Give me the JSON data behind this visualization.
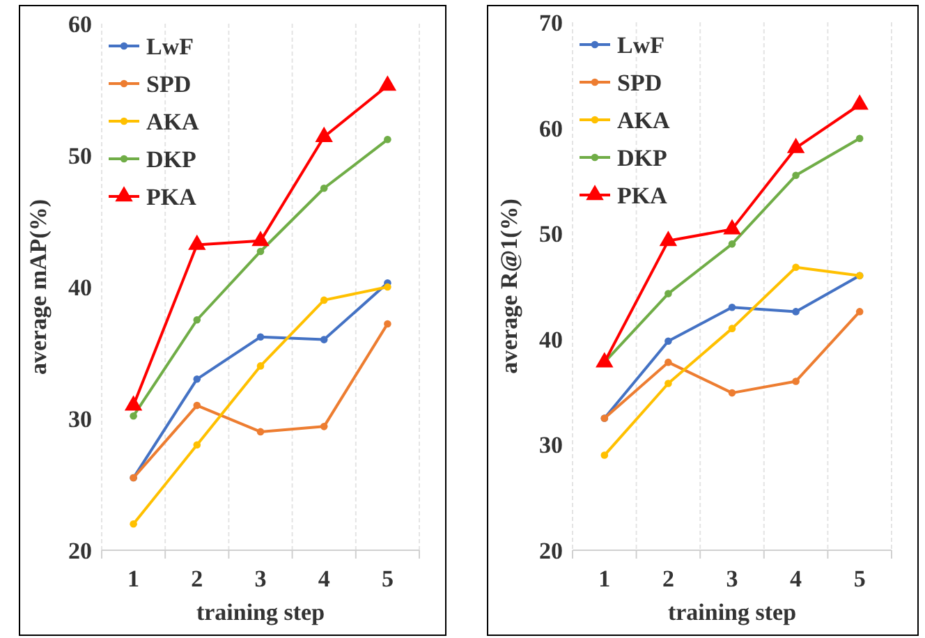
{
  "chart_data": [
    {
      "type": "line",
      "xlabel": "training step",
      "ylabel": "average mAP(%)",
      "categories": [
        "1",
        "2",
        "3",
        "4",
        "5"
      ],
      "ylim": [
        20,
        60
      ],
      "yticks": [
        20,
        30,
        40,
        50,
        60
      ],
      "grid": "x",
      "legend": "top left",
      "marker": "circle",
      "series": [
        {
          "name": "LwF",
          "color": "#4472c4",
          "values": [
            25.5,
            33,
            36.2,
            36,
            40.3
          ]
        },
        {
          "name": "SPD",
          "color": "#ed7d31",
          "values": [
            25.5,
            31,
            29,
            29.4,
            37.2
          ]
        },
        {
          "name": "AKA",
          "color": "#ffc000",
          "values": [
            22,
            28,
            34,
            39,
            40
          ]
        },
        {
          "name": "DKP",
          "color": "#70ad47",
          "values": [
            30.2,
            37.5,
            42.7,
            47.5,
            51.2
          ]
        },
        {
          "name": "PKA",
          "color": "#ff0000",
          "marker": "triangle",
          "values": [
            31,
            43.2,
            43.5,
            51.4,
            55.3
          ]
        }
      ]
    },
    {
      "type": "line",
      "xlabel": "training step",
      "ylabel": "average R@1(%)",
      "categories": [
        "1",
        "2",
        "3",
        "4",
        "5"
      ],
      "ylim": [
        20,
        70
      ],
      "yticks": [
        20,
        30,
        40,
        50,
        60,
        70
      ],
      "grid": "x",
      "legend": "top left",
      "marker": "circle",
      "series": [
        {
          "name": "LwF",
          "color": "#4472c4",
          "values": [
            32.5,
            39.8,
            43,
            42.6,
            46
          ]
        },
        {
          "name": "SPD",
          "color": "#ed7d31",
          "values": [
            32.5,
            37.8,
            34.9,
            36,
            42.6
          ]
        },
        {
          "name": "AKA",
          "color": "#ffc000",
          "values": [
            29,
            35.8,
            41,
            46.8,
            46
          ]
        },
        {
          "name": "DKP",
          "color": "#70ad47",
          "values": [
            37.8,
            44.3,
            49,
            55.5,
            59
          ]
        },
        {
          "name": "PKA",
          "color": "#ff0000",
          "marker": "triangle",
          "values": [
            37.8,
            49.3,
            50.4,
            58.1,
            62.2
          ]
        }
      ]
    }
  ]
}
